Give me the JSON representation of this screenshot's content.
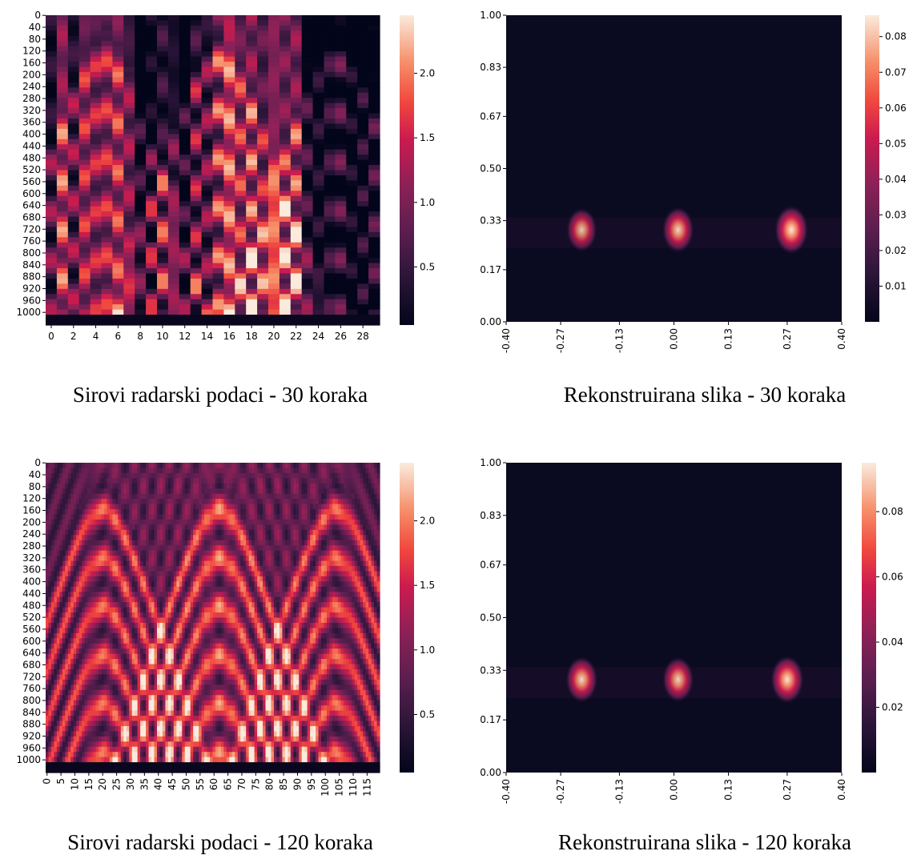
{
  "chart_data": [
    {
      "type": "heatmap",
      "caption": "Sirovi radarski podaci - 30 koraka",
      "x_ticks": [
        "0",
        "2",
        "4",
        "6",
        "8",
        "10",
        "12",
        "14",
        "16",
        "18",
        "20",
        "22",
        "24",
        "26",
        "28"
      ],
      "y_ticks": [
        "0",
        "40",
        "80",
        "120",
        "160",
        "200",
        "240",
        "280",
        "320",
        "360",
        "400",
        "440",
        "480",
        "520",
        "560",
        "600",
        "640",
        "680",
        "720",
        "760",
        "800",
        "840",
        "880",
        "920",
        "960",
        "1000"
      ],
      "colorbar_ticks": [
        "0.5",
        "1.0",
        "1.5",
        "2.0"
      ],
      "colorbar_range": [
        0.05,
        2.45
      ],
      "columns": 30,
      "rows": 1040,
      "colormap": "rocket"
    },
    {
      "type": "heatmap",
      "caption": "Rekonstruirana slika - 30 koraka",
      "x_ticks": [
        "-0.40",
        "-0.27",
        "-0.13",
        "0.00",
        "0.13",
        "0.27",
        "0.40"
      ],
      "y_ticks": [
        "0.00",
        "0.17",
        "0.33",
        "0.50",
        "0.67",
        "0.83",
        "1.00"
      ],
      "colorbar_ticks": [
        "0.01",
        "0.02",
        "0.03",
        "0.04",
        "0.05",
        "0.06",
        "0.07",
        "0.08"
      ],
      "colorbar_range": [
        0.0,
        0.086
      ],
      "x_range": [
        -0.4,
        0.4
      ],
      "y_range": [
        0.0,
        1.0
      ],
      "colormap": "rocket",
      "peaks": [
        {
          "x": -0.22,
          "y": 0.3,
          "value": 0.06
        },
        {
          "x": 0.01,
          "y": 0.3,
          "value": 0.07
        },
        {
          "x": 0.28,
          "y": 0.3,
          "value": 0.086
        }
      ]
    },
    {
      "type": "heatmap",
      "caption": "Sirovi radarski podaci - 120 koraka",
      "x_ticks": [
        "0",
        "5",
        "10",
        "15",
        "20",
        "25",
        "30",
        "35",
        "40",
        "45",
        "50",
        "55",
        "60",
        "65",
        "70",
        "75",
        "80",
        "85",
        "90",
        "95",
        "100",
        "105",
        "110",
        "115"
      ],
      "y_ticks": [
        "0",
        "40",
        "80",
        "120",
        "160",
        "200",
        "240",
        "280",
        "320",
        "360",
        "400",
        "440",
        "480",
        "520",
        "560",
        "600",
        "640",
        "680",
        "720",
        "760",
        "800",
        "840",
        "880",
        "920",
        "960",
        "1000"
      ],
      "colorbar_ticks": [
        "0.5",
        "1.0",
        "1.5",
        "2.0"
      ],
      "colorbar_range": [
        0.05,
        2.45
      ],
      "columns": 120,
      "rows": 1040,
      "colormap": "rocket"
    },
    {
      "type": "heatmap",
      "caption": "Rekonstruirana slika - 120 koraka",
      "x_ticks": [
        "-0.40",
        "-0.27",
        "-0.13",
        "0.00",
        "0.13",
        "0.27",
        "0.40"
      ],
      "y_ticks": [
        "0.00",
        "0.17",
        "0.33",
        "0.50",
        "0.67",
        "0.83",
        "1.00"
      ],
      "colorbar_ticks": [
        "0.02",
        "0.04",
        "0.06",
        "0.08"
      ],
      "colorbar_range": [
        0.0,
        0.095
      ],
      "x_range": [
        -0.4,
        0.4
      ],
      "y_range": [
        0.0,
        1.0
      ],
      "colormap": "rocket",
      "peaks": [
        {
          "x": -0.22,
          "y": 0.3,
          "value": 0.08
        },
        {
          "x": 0.01,
          "y": 0.3,
          "value": 0.075
        },
        {
          "x": 0.27,
          "y": 0.3,
          "value": 0.09
        }
      ]
    }
  ]
}
